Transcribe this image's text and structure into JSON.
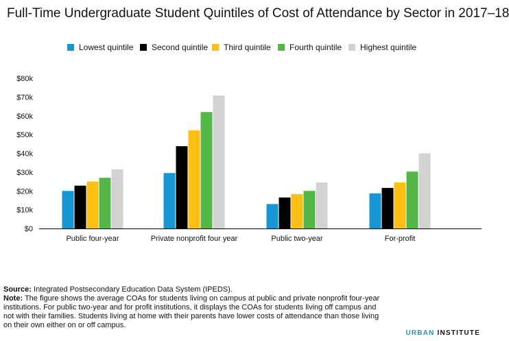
{
  "title": "Full-Time Undergraduate Student Quintiles of Cost of Attendance by Sector in 2017–18",
  "legend": [
    {
      "label": "Lowest quintile",
      "color": "#1696d2"
    },
    {
      "label": "Second quintile",
      "color": "#000000"
    },
    {
      "label": "Third quintile",
      "color": "#fdbf11"
    },
    {
      "label": "Fourth quintile",
      "color": "#55b748"
    },
    {
      "label": "Highest quintile",
      "color": "#d2d2d2"
    }
  ],
  "chart_data": {
    "type": "bar",
    "categories": [
      "Public four-year",
      "Private nonprofit four year",
      "Public two-year",
      "For-profit"
    ],
    "series": [
      {
        "name": "Lowest quintile",
        "values": [
          20000,
          29500,
          13000,
          18700
        ],
        "color": "#1696d2"
      },
      {
        "name": "Second quintile",
        "values": [
          22800,
          43800,
          16500,
          21600
        ],
        "color": "#000000"
      },
      {
        "name": "Third quintile",
        "values": [
          25000,
          52200,
          18300,
          24500
        ],
        "color": "#fdbf11"
      },
      {
        "name": "Fourth quintile",
        "values": [
          27000,
          62000,
          20000,
          30300
        ],
        "color": "#55b748"
      },
      {
        "name": "Highest quintile",
        "values": [
          31500,
          70800,
          24500,
          40000
        ],
        "color": "#d2d2d2"
      }
    ],
    "y_ticks": [
      "$0",
      "$10k",
      "$20k",
      "$30k",
      "$40k",
      "$50k",
      "$60k",
      "$70k",
      "$80k"
    ],
    "ylim": [
      0,
      80000
    ],
    "grid": false,
    "legend_position": "top-center"
  },
  "notes": {
    "source_label": "Source:",
    "source_text": " Integrated Postsecondary Education Data System (IPEDS).",
    "note_label": "Note:",
    "note_lines": [
      " The figure shows the average COAs for students living on campus at public and private nonprofit four-year",
      "institutions. For public two-year and for profit institutions, it displays the COAs for students living off campus and",
      "not with their families. Students living at home with their parents have lower costs of attendance than those living",
      "on their own either on or off campus."
    ]
  },
  "branding": {
    "part1": "URBAN",
    "part2": " INSTITUTE"
  }
}
